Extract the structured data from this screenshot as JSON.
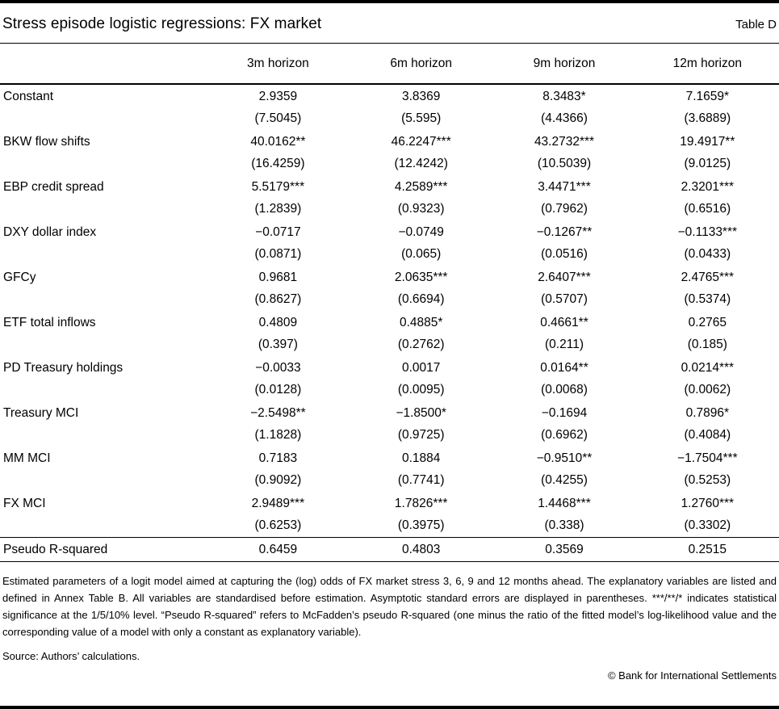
{
  "header": {
    "title": "Stress episode logistic regressions: FX market",
    "table_label": "Table D"
  },
  "table": {
    "columns": [
      "3m horizon",
      "6m horizon",
      "9m horizon",
      "12m horizon"
    ],
    "rows": [
      {
        "label": "Constant",
        "coefs": [
          "2.9359",
          "3.8369",
          "8.3483*",
          "7.1659*"
        ],
        "ses": [
          "(7.5045)",
          "(5.595)",
          "(4.4366)",
          "(3.6889)"
        ]
      },
      {
        "label": "BKW flow shifts",
        "coefs": [
          "40.0162**",
          "46.2247***",
          "43.2732***",
          "19.4917**"
        ],
        "ses": [
          "(16.4259)",
          "(12.4242)",
          "(10.5039)",
          "(9.0125)"
        ]
      },
      {
        "label": "EBP credit spread",
        "coefs": [
          "5.5179***",
          "4.2589***",
          "3.4471***",
          "2.3201***"
        ],
        "ses": [
          "(1.2839)",
          "(0.9323)",
          "(0.7962)",
          "(0.6516)"
        ]
      },
      {
        "label": "DXY dollar index",
        "coefs": [
          "−0.0717",
          "−0.0749",
          "−0.1267**",
          "−0.1133***"
        ],
        "ses": [
          "(0.0871)",
          "(0.065)",
          "(0.0516)",
          "(0.0433)"
        ]
      },
      {
        "label": "GFCy",
        "coefs": [
          "0.9681",
          "2.0635***",
          "2.6407***",
          "2.4765***"
        ],
        "ses": [
          "(0.8627)",
          "(0.6694)",
          "(0.5707)",
          "(0.5374)"
        ]
      },
      {
        "label": "ETF total inflows",
        "coefs": [
          "0.4809",
          "0.4885*",
          "0.4661**",
          "0.2765"
        ],
        "ses": [
          "(0.397)",
          "(0.2762)",
          "(0.211)",
          "(0.185)"
        ]
      },
      {
        "label": "PD Treasury holdings",
        "coefs": [
          "−0.0033",
          "0.0017",
          "0.0164**",
          "0.0214***"
        ],
        "ses": [
          "(0.0128)",
          "(0.0095)",
          "(0.0068)",
          "(0.0062)"
        ]
      },
      {
        "label": "Treasury MCI",
        "coefs": [
          "−2.5498**",
          "−1.8500*",
          "−0.1694",
          "0.7896*"
        ],
        "ses": [
          "(1.1828)",
          "(0.9725)",
          "(0.6962)",
          "(0.4084)"
        ]
      },
      {
        "label": "MM MCI",
        "coefs": [
          "0.7183",
          "0.1884",
          "−0.9510**",
          "−1.7504***"
        ],
        "ses": [
          "(0.9092)",
          "(0.7741)",
          "(0.4255)",
          "(0.5253)"
        ]
      },
      {
        "label": "FX MCI",
        "coefs": [
          "2.9489***",
          "1.7826***",
          "1.4468***",
          "1.2760***"
        ],
        "ses": [
          "(0.6253)",
          "(0.3975)",
          "(0.338)",
          "(0.3302)"
        ]
      }
    ],
    "summary_row": {
      "label": "Pseudo R-squared",
      "values": [
        "0.6459",
        "0.4803",
        "0.3569",
        "0.2515"
      ]
    }
  },
  "notes": {
    "body": "Estimated parameters of a logit model aimed at capturing the (log) odds of FX market stress 3, 6, 9 and 12 months ahead. The explanatory variables are listed and defined in Annex Table B. All variables are standardised before estimation. Asymptotic standard errors are displayed in parentheses. ***/**/* indicates statistical significance at the 1/5/10% level. “Pseudo R-squared” refers to McFadden’s pseudo R-squared (one minus the ratio of the fitted model’s log-likelihood value and the corresponding value of a model with only a constant as explanatory variable).",
    "source": "Source: Authors’ calculations.",
    "copyright": "© Bank for International Settlements"
  }
}
